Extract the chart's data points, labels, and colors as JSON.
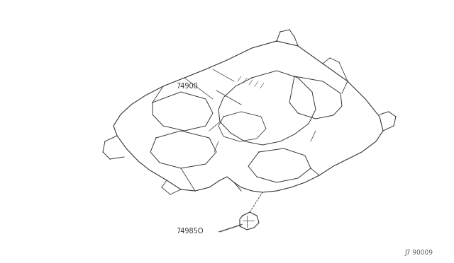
{
  "title": "",
  "background_color": "#ffffff",
  "line_color": "#333333",
  "label_74900": "74900",
  "label_749850": "74985O",
  "watermark": "J7·90009",
  "fig_width": 6.4,
  "fig_height": 3.72,
  "dpi": 100
}
